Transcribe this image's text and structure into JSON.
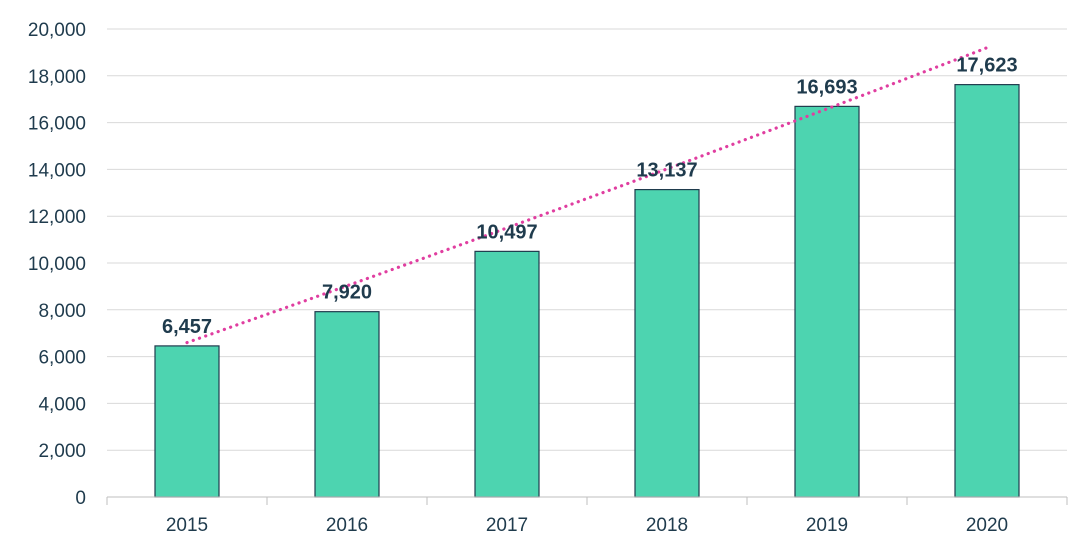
{
  "chart_data": {
    "type": "bar",
    "categories": [
      "2015",
      "2016",
      "2017",
      "2018",
      "2019",
      "2020"
    ],
    "values": [
      6457,
      7920,
      10497,
      13137,
      16693,
      17623
    ],
    "data_labels": [
      "6,457",
      "7,920",
      "10,497",
      "13,137",
      "16,693",
      "17,623"
    ],
    "y_ticks": [
      0,
      2000,
      4000,
      6000,
      8000,
      10000,
      12000,
      14000,
      16000,
      18000,
      20000
    ],
    "y_tick_labels": [
      "0",
      "2,000",
      "4,000",
      "6,000",
      "8,000",
      "10,000",
      "12,000",
      "14,000",
      "16,000",
      "18,000",
      "20,000"
    ],
    "ylim": [
      0,
      20000
    ],
    "title": "",
    "xlabel": "",
    "ylabel": "",
    "grid": true,
    "trendline": {
      "type": "polynomial",
      "style": "dotted",
      "start_value": 6600,
      "end_value": 19200
    },
    "colors": {
      "bar_fill": "#4dd4b0",
      "bar_stroke": "#1f3b4d",
      "trendline": "#e03ea0",
      "text": "#1f3b4d"
    }
  }
}
